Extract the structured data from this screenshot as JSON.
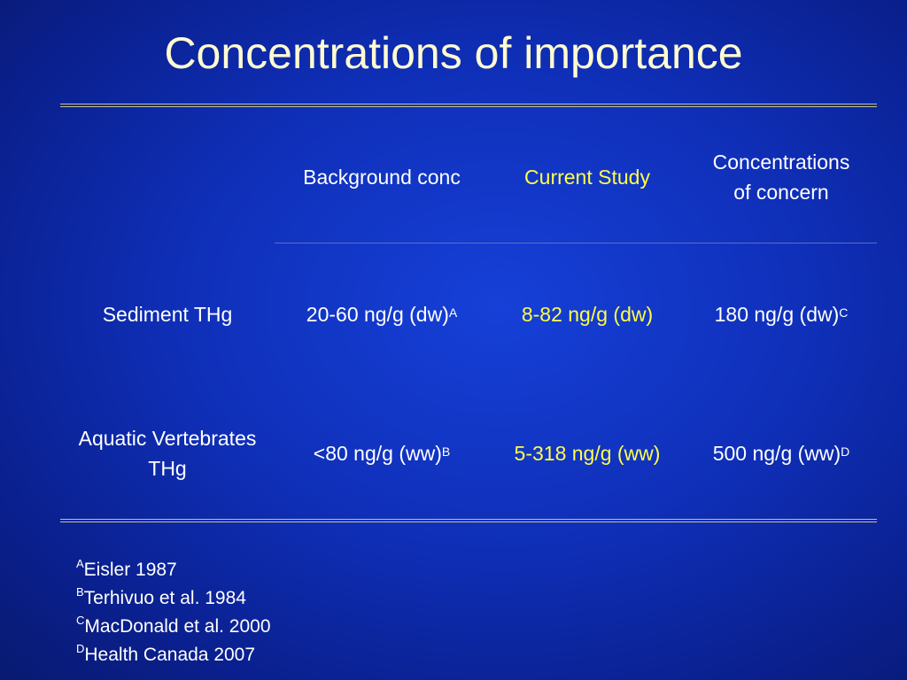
{
  "title": "Concentrations of importance",
  "table": {
    "headers": [
      "",
      "Background conc",
      "Current Study",
      "Concentrations of concern"
    ],
    "rows": [
      {
        "label": "Sediment THg",
        "background": "20-60 ng/g (dw)",
        "background_ref": "A",
        "current": "8-82 ng/g (dw)",
        "concern": "180 ng/g (dw)",
        "concern_ref": "C"
      },
      {
        "label": "Aquatic Vertebrates THg",
        "background": "<80 ng/g (ww)",
        "background_ref": "B",
        "current": "5-318 ng/g (ww)",
        "concern": "500 ng/g (ww)",
        "concern_ref": "D"
      }
    ]
  },
  "references": [
    {
      "key": "A",
      "text": "Eisler 1987"
    },
    {
      "key": "B",
      "text": "Terhivuo et al. 1984"
    },
    {
      "key": "C",
      "text": "MacDonald et al. 2000"
    },
    {
      "key": "D",
      "text": "Health Canada 2007"
    }
  ],
  "colors": {
    "background": "#0f2fb8",
    "title": "#fffbd0",
    "highlight": "#fffd4a",
    "rule": "#c9c48a"
  }
}
